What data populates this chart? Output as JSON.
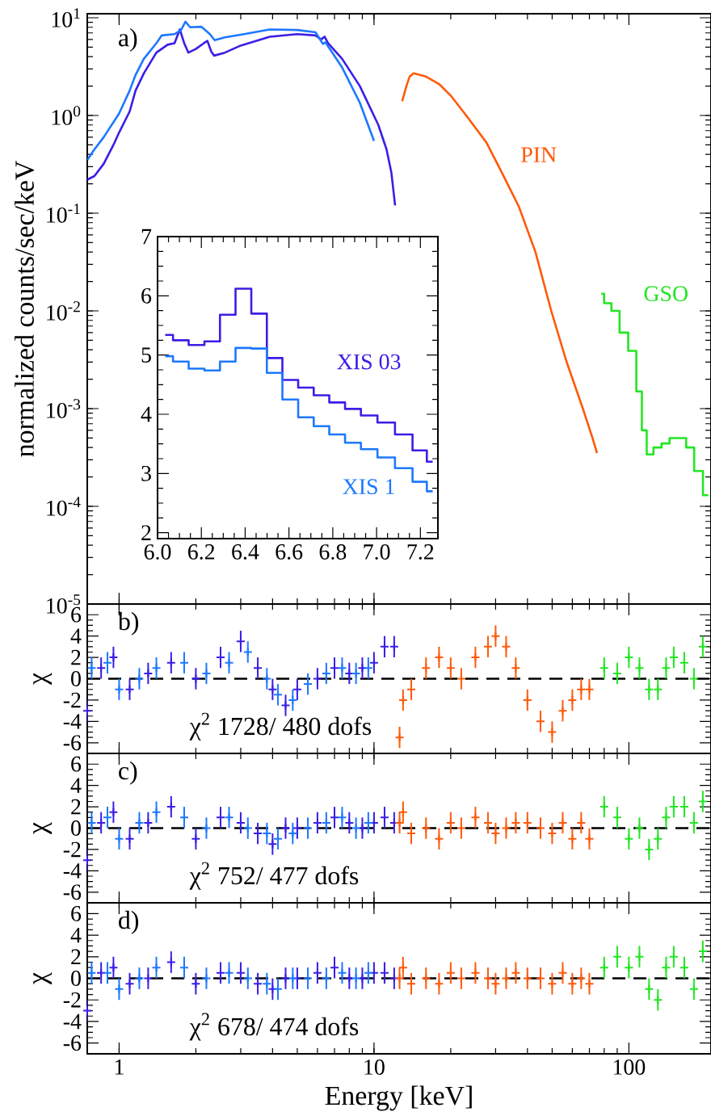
{
  "chart_data": [
    {
      "type": "line",
      "log": "xy",
      "ylabel": "normalized counts/sec/keV",
      "xlim": [
        0.75,
        210
      ],
      "ylim": [
        1e-05,
        11
      ],
      "tick_labels": "y",
      "xticks": [
        1,
        10,
        100
      ],
      "yticks": [
        {
          "value": 1e-05,
          "label": "10$^{-5}$"
        },
        {
          "value": 0.0001,
          "label": "10$^{-4}$"
        },
        {
          "value": 0.001,
          "label": "10$^{-3}$"
        },
        {
          "value": 0.01,
          "label": "10$^{-2}$"
        },
        {
          "value": 0.1,
          "label": "10$^{-1}$"
        },
        {
          "value": 1,
          "label": "10$^{0}$"
        },
        {
          "value": 10,
          "label": "10$^{1}$"
        }
      ],
      "annotations": [
        "a)"
      ],
      "series": [
        {
          "color": "#3a1ee6",
          "x": [
            0.75,
            0.8,
            0.87,
            0.95,
            1.0,
            1.1,
            1.16,
            1.25,
            1.4,
            1.55,
            1.65,
            1.73,
            1.8,
            1.87,
            2.0,
            2.15,
            2.22,
            2.3,
            2.36,
            2.6,
            3.0,
            3.9,
            5.0,
            5.9,
            6.2,
            6.4,
            6.6,
            7.5,
            8.8,
            10.4,
            11.2,
            11.7,
            12.1
          ],
          "values": [
            0.22,
            0.24,
            0.32,
            0.5,
            0.67,
            1.1,
            1.8,
            2.7,
            4.4,
            5.3,
            5.5,
            7.6,
            5.5,
            4.4,
            4.8,
            5.5,
            5.8,
            4.5,
            4.1,
            4.4,
            5.2,
            6.4,
            6.8,
            6.6,
            6.0,
            6.4,
            5.5,
            3.8,
            2.0,
            0.8,
            0.45,
            0.26,
            0.12
          ]
        },
        {
          "color": "#1e78ff",
          "x": [
            0.75,
            0.8,
            0.87,
            1.0,
            1.1,
            1.16,
            1.25,
            1.4,
            1.47,
            1.65,
            1.75,
            1.82,
            1.9,
            2.1,
            2.27,
            2.37,
            2.6,
            3.0,
            3.9,
            5.0,
            5.9,
            6.3,
            6.45,
            7.5,
            8.8,
            10.0
          ],
          "values": [
            0.35,
            0.45,
            0.6,
            1.05,
            1.8,
            2.6,
            3.8,
            5.5,
            6.6,
            6.8,
            7.5,
            9.1,
            8.0,
            8.1,
            6.8,
            5.9,
            6.3,
            6.7,
            7.6,
            7.5,
            7.1,
            5.4,
            5.6,
            3.1,
            1.35,
            0.55
          ]
        },
        {
          "name": "PIN",
          "color": "#ff5a0a",
          "x": [
            12.9,
            13.4,
            13.8,
            14.3,
            16,
            18,
            20,
            23,
            27.6,
            32,
            37,
            43,
            49.6,
            57,
            66,
            72,
            75
          ],
          "values": [
            1.4,
            2.0,
            2.5,
            2.7,
            2.5,
            2.1,
            1.6,
            1.0,
            0.53,
            0.25,
            0.117,
            0.04,
            0.01,
            0.003,
            0.001,
            0.0005,
            0.00035
          ]
        },
        {
          "name": "GSO",
          "type": "step",
          "color": "#22e622",
          "x": [
            78,
            82,
            89,
            95,
            104,
            110,
            115,
            120,
            130,
            139,
            150,
            161,
            175,
            186,
            205
          ],
          "values": [
            0.015,
            0.012,
            0.01,
            0.006,
            0.0039,
            0.0015,
            0.0006,
            0.00034,
            0.0004,
            0.00044,
            0.0005,
            0.0005,
            0.0004,
            0.00023,
            0.00013
          ]
        }
      ]
    },
    {
      "type": "step",
      "xlim": [
        6.0,
        7.28
      ],
      "ylim": [
        1.9,
        7
      ],
      "xticks": [
        {
          "value": 6,
          "label": "6.0"
        },
        {
          "value": 6.2,
          "label": "6.2"
        },
        {
          "value": 6.4,
          "label": "6.4"
        },
        {
          "value": 6.6,
          "label": "6.6"
        },
        {
          "value": 6.8,
          "label": "6.8"
        },
        {
          "value": 7,
          "label": "7.0"
        },
        {
          "value": 7.2,
          "label": "7.2"
        }
      ],
      "yticks": [
        2,
        3,
        4,
        5,
        6,
        7
      ],
      "series": [
        {
          "name": "XIS 03",
          "color": "#3a1ee6",
          "x": [
            6.035,
            6.106,
            6.178,
            6.25,
            6.32,
            6.392,
            6.464,
            6.534,
            6.606,
            6.678,
            6.748,
            6.82,
            6.892,
            6.965,
            7.043,
            7.125,
            7.203,
            7.256
          ],
          "values": [
            5.34,
            5.25,
            5.17,
            5.23,
            5.68,
            6.12,
            5.7,
            4.95,
            4.58,
            4.45,
            4.32,
            4.2,
            4.09,
            3.98,
            3.86,
            3.66,
            3.39,
            3.2
          ]
        },
        {
          "name": "XIS 1",
          "color": "#1e78ff",
          "x": [
            6.035,
            6.106,
            6.178,
            6.25,
            6.32,
            6.392,
            6.464,
            6.534,
            6.606,
            6.678,
            6.748,
            6.82,
            6.892,
            6.965,
            7.043,
            7.125,
            7.203,
            7.256
          ],
          "values": [
            4.98,
            4.89,
            4.77,
            4.74,
            4.89,
            5.12,
            5.11,
            4.7,
            4.25,
            3.95,
            3.8,
            3.66,
            3.52,
            3.41,
            3.27,
            3.09,
            2.86,
            2.7
          ]
        }
      ]
    },
    {
      "type": "scatter",
      "marker": "cross",
      "log": "x",
      "ylabel": "χ",
      "xlim": [
        0.75,
        210
      ],
      "ylim": [
        -7,
        7
      ],
      "tick_labels": "y",
      "xticks": [
        1,
        10,
        100
      ],
      "yticks": [
        -6,
        -4,
        -2,
        0,
        2,
        4,
        6
      ],
      "annotations": [
        "b)",
        "χ$^{2}$ 1728/ 480 dofs"
      ],
      "ref_lines": [
        {
          "axis": "y",
          "value": 0,
          "line_style": "dashed",
          "color": "#000000"
        }
      ],
      "series": [
        {
          "color": "#3a1ee6",
          "x": [
            0.75,
            0.85,
            0.95,
            1.1,
            1.3,
            1.6,
            2.0,
            2.5,
            3.0,
            3.5,
            4.0,
            4.5,
            5.0,
            6.0,
            7.0,
            8.0,
            9.0,
            10.0,
            11.0,
            12.0
          ],
          "values": [
            -3,
            1,
            2,
            -1,
            0.5,
            1.5,
            0,
            2,
            3.5,
            1,
            -1,
            -2.5,
            -1,
            0,
            1,
            0.5,
            1,
            1.5,
            3,
            3
          ],
          "errors": [
            1,
            1,
            1,
            1,
            1,
            1,
            1,
            1,
            1,
            1,
            1,
            1,
            1,
            1,
            1,
            1,
            1,
            1,
            1,
            1
          ]
        },
        {
          "color": "#1e78ff",
          "x": [
            0.78,
            0.9,
            1.0,
            1.2,
            1.4,
            1.8,
            2.2,
            2.7,
            3.2,
            3.8,
            4.2,
            4.8,
            5.5,
            6.5,
            7.5,
            8.5,
            9.5
          ],
          "values": [
            1,
            1.5,
            -1,
            0,
            1,
            1.5,
            0.5,
            1.5,
            2.5,
            0,
            -1.5,
            -2,
            -0.5,
            0.5,
            1,
            0.5,
            1
          ],
          "errors": [
            1,
            1,
            1,
            1,
            1,
            1,
            1,
            1,
            1,
            1,
            1,
            1,
            1,
            1,
            1,
            1,
            1
          ]
        },
        {
          "color": "#ff5a0a",
          "x": [
            12.6,
            13,
            14,
            16,
            18,
            20,
            22,
            25,
            28,
            30,
            33,
            36,
            40,
            45,
            50,
            55,
            60,
            65,
            70
          ],
          "values": [
            -5.5,
            -2,
            -1,
            1,
            2,
            1,
            0,
            2,
            3,
            4,
            3,
            1,
            -2,
            -4,
            -5,
            -3,
            -2,
            -1,
            -1
          ],
          "errors": [
            1,
            1,
            1,
            1,
            1,
            1,
            1,
            1,
            1,
            1,
            1,
            1,
            1,
            1,
            1,
            1,
            1,
            1,
            1
          ]
        },
        {
          "color": "#22e622",
          "x": [
            80,
            90,
            100,
            110,
            120,
            130,
            140,
            150,
            165,
            180,
            195
          ],
          "values": [
            1,
            0.5,
            2,
            1,
            -1,
            -1,
            1,
            2,
            1.5,
            0,
            3
          ],
          "errors": [
            1,
            1,
            1,
            1,
            1,
            1,
            1,
            1,
            1,
            1,
            1
          ]
        }
      ]
    },
    {
      "type": "scatter",
      "marker": "cross",
      "log": "x",
      "ylabel": "χ",
      "xlim": [
        0.75,
        210
      ],
      "ylim": [
        -7,
        7
      ],
      "tick_labels": "y",
      "xticks": [
        1,
        10,
        100
      ],
      "yticks": [
        -6,
        -4,
        -2,
        0,
        2,
        4,
        6
      ],
      "annotations": [
        "c)",
        "χ$^{2}$ 752/ 477 dofs"
      ],
      "ref_lines": [
        {
          "axis": "y",
          "value": 0,
          "line_style": "dashed",
          "color": "#000000"
        }
      ],
      "series": [
        {
          "color": "#3a1ee6",
          "x": [
            0.75,
            0.85,
            0.95,
            1.1,
            1.3,
            1.6,
            2.0,
            2.5,
            3.0,
            3.5,
            4.0,
            4.5,
            5.0,
            6.0,
            7.0,
            8.0,
            9.0,
            10.0,
            11.0,
            12.0
          ],
          "values": [
            -3,
            0.5,
            1.5,
            -1,
            0.5,
            2,
            -1,
            1,
            0.5,
            -0.5,
            -1.5,
            0,
            0,
            0.5,
            1,
            0.5,
            0,
            0.5,
            1,
            0.5
          ],
          "errors": [
            1,
            1,
            1,
            1,
            1,
            1,
            1,
            1,
            1,
            1,
            1,
            1,
            1,
            1,
            1,
            1,
            1,
            1,
            1,
            1
          ]
        },
        {
          "color": "#1e78ff",
          "x": [
            0.78,
            0.9,
            1.0,
            1.2,
            1.4,
            1.8,
            2.2,
            2.7,
            3.2,
            3.8,
            4.2,
            4.8,
            5.5,
            6.5,
            7.5,
            8.5,
            9.5
          ],
          "values": [
            0.5,
            1,
            -1,
            0.5,
            1.5,
            1,
            0,
            1,
            0,
            -0.5,
            -1,
            -0.5,
            0,
            0.5,
            1,
            0,
            0.5
          ],
          "errors": [
            1,
            1,
            1,
            1,
            1,
            1,
            1,
            1,
            1,
            1,
            1,
            1,
            1,
            1,
            1,
            1,
            1
          ]
        },
        {
          "color": "#ff5a0a",
          "x": [
            12.6,
            13,
            14,
            16,
            18,
            20,
            22,
            25,
            28,
            30,
            33,
            36,
            40,
            45,
            50,
            55,
            60,
            65,
            70
          ],
          "values": [
            0.5,
            1.5,
            -0.5,
            0,
            -1,
            0.5,
            0,
            1,
            0.5,
            -0.5,
            0,
            0.5,
            0.5,
            0,
            -0.5,
            0.5,
            -1,
            0.5,
            -1
          ],
          "errors": [
            1,
            1,
            1,
            1,
            1,
            1,
            1,
            1,
            1,
            1,
            1,
            1,
            1,
            1,
            1,
            1,
            1,
            1,
            1
          ]
        },
        {
          "color": "#22e622",
          "x": [
            80,
            90,
            100,
            110,
            120,
            130,
            140,
            150,
            165,
            180,
            195
          ],
          "values": [
            2,
            1,
            -1,
            0,
            -2,
            -1,
            1,
            2,
            2,
            0.5,
            2.5
          ],
          "errors": [
            1,
            1,
            1,
            1,
            1,
            1,
            1,
            1,
            1,
            1,
            1
          ]
        }
      ]
    },
    {
      "type": "scatter",
      "marker": "cross",
      "log": "x",
      "xlabel": "Energy [keV]",
      "ylabel": "χ",
      "xlim": [
        0.75,
        210
      ],
      "ylim": [
        -7,
        7
      ],
      "xticks": [
        1,
        10,
        100
      ],
      "yticks": [
        -6,
        -4,
        -2,
        0,
        2,
        4,
        6
      ],
      "annotations": [
        "d)",
        "χ$^{2}$ 678/ 474 dofs"
      ],
      "ref_lines": [
        {
          "axis": "y",
          "value": 0,
          "line_style": "dashed",
          "color": "#000000"
        }
      ],
      "series": [
        {
          "color": "#3a1ee6",
          "x": [
            0.75,
            0.85,
            0.95,
            1.1,
            1.3,
            1.6,
            2.0,
            2.5,
            3.0,
            3.5,
            4.0,
            4.5,
            5.0,
            6.0,
            7.0,
            8.0,
            9.0,
            10.0,
            11.0,
            12.0
          ],
          "values": [
            -3,
            0.5,
            1,
            -0.5,
            0,
            1.5,
            -0.5,
            0.5,
            0.5,
            -0.5,
            -1,
            0,
            0,
            0.5,
            1,
            0,
            0,
            0.5,
            0.5,
            0
          ],
          "errors": [
            1,
            1,
            1,
            1,
            1,
            1,
            1,
            1,
            1,
            1,
            1,
            1,
            1,
            1,
            1,
            1,
            1,
            1,
            1,
            1
          ]
        },
        {
          "color": "#1e78ff",
          "x": [
            0.78,
            0.9,
            1.0,
            1.2,
            1.4,
            1.8,
            2.2,
            2.7,
            3.2,
            3.8,
            4.2,
            4.8,
            5.5,
            6.5,
            7.5,
            8.5,
            9.5
          ],
          "values": [
            0.5,
            0.5,
            -1,
            0,
            1,
            1,
            0,
            0.5,
            0,
            -0.5,
            -1,
            0,
            0,
            0,
            0.5,
            0,
            0.5
          ],
          "errors": [
            1,
            1,
            1,
            1,
            1,
            1,
            1,
            1,
            1,
            1,
            1,
            1,
            1,
            1,
            1,
            1,
            1
          ]
        },
        {
          "color": "#ff5a0a",
          "x": [
            12.6,
            13,
            14,
            16,
            18,
            20,
            22,
            25,
            28,
            30,
            33,
            36,
            40,
            45,
            50,
            55,
            60,
            65,
            70
          ],
          "values": [
            0,
            1,
            -0.5,
            0,
            -0.5,
            0.5,
            0,
            0.5,
            0,
            -0.5,
            0,
            0.5,
            0,
            0,
            -0.5,
            0.5,
            -0.5,
            0,
            -0.5
          ],
          "errors": [
            1,
            1,
            1,
            1,
            1,
            1,
            1,
            1,
            1,
            1,
            1,
            1,
            1,
            1,
            1,
            1,
            1,
            1,
            1
          ]
        },
        {
          "color": "#22e622",
          "x": [
            80,
            90,
            100,
            110,
            120,
            130,
            140,
            150,
            165,
            180,
            195
          ],
          "values": [
            1,
            2,
            1,
            2,
            -1,
            -2,
            1,
            2,
            1,
            -1,
            2.5
          ],
          "errors": [
            1,
            1,
            1,
            1,
            1,
            1,
            1,
            1,
            1,
            1,
            1
          ]
        }
      ]
    }
  ]
}
